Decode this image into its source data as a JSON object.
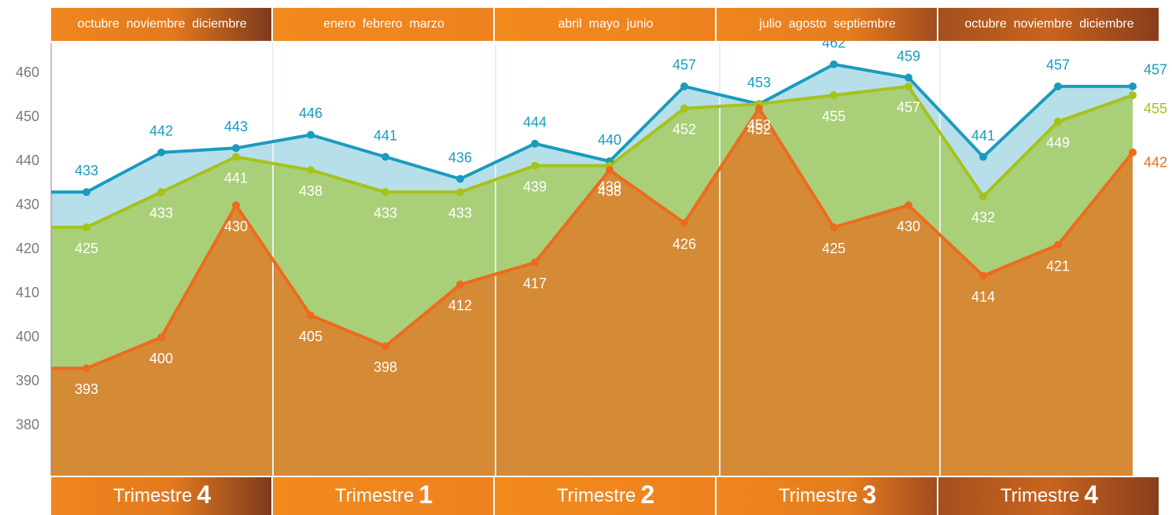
{
  "chart_data": {
    "type": "area",
    "quarters": [
      {
        "months": "octubre  noviembre  diciembre",
        "label": "Trimestre",
        "number": "4"
      },
      {
        "months": "enero  febrero  marzo",
        "label": "Trimestre",
        "number": "1"
      },
      {
        "months": "abril  mayo  junio",
        "label": "Trimestre",
        "number": "2"
      },
      {
        "months": "julio  agosto  septiembre",
        "label": "Trimestre",
        "number": "3"
      },
      {
        "months": "octubre  noviembre  diciembre",
        "label": "Trimestre",
        "number": "4"
      }
    ],
    "series": [
      {
        "color": "#1a9bbd",
        "fill": "#b6dfea",
        "values": [
          433,
          442,
          443,
          446,
          441,
          436,
          444,
          440,
          457,
          453,
          462,
          459,
          441,
          457,
          457
        ]
      },
      {
        "color": "#a6c21b",
        "fill": "#a9cf79",
        "values": [
          425,
          433,
          441,
          438,
          433,
          433,
          439,
          439,
          452,
          453,
          455,
          457,
          432,
          449,
          455
        ]
      },
      {
        "color": "#ec6b1e",
        "fill": "#d58a36",
        "values": [
          393,
          400,
          430,
          405,
          398,
          412,
          417,
          438,
          426,
          452,
          425,
          430,
          414,
          421,
          442
        ]
      }
    ],
    "ylim": [
      368.6,
      466.8
    ],
    "yticks": [
      380,
      390,
      400,
      410,
      420,
      430,
      440,
      450,
      460
    ]
  }
}
